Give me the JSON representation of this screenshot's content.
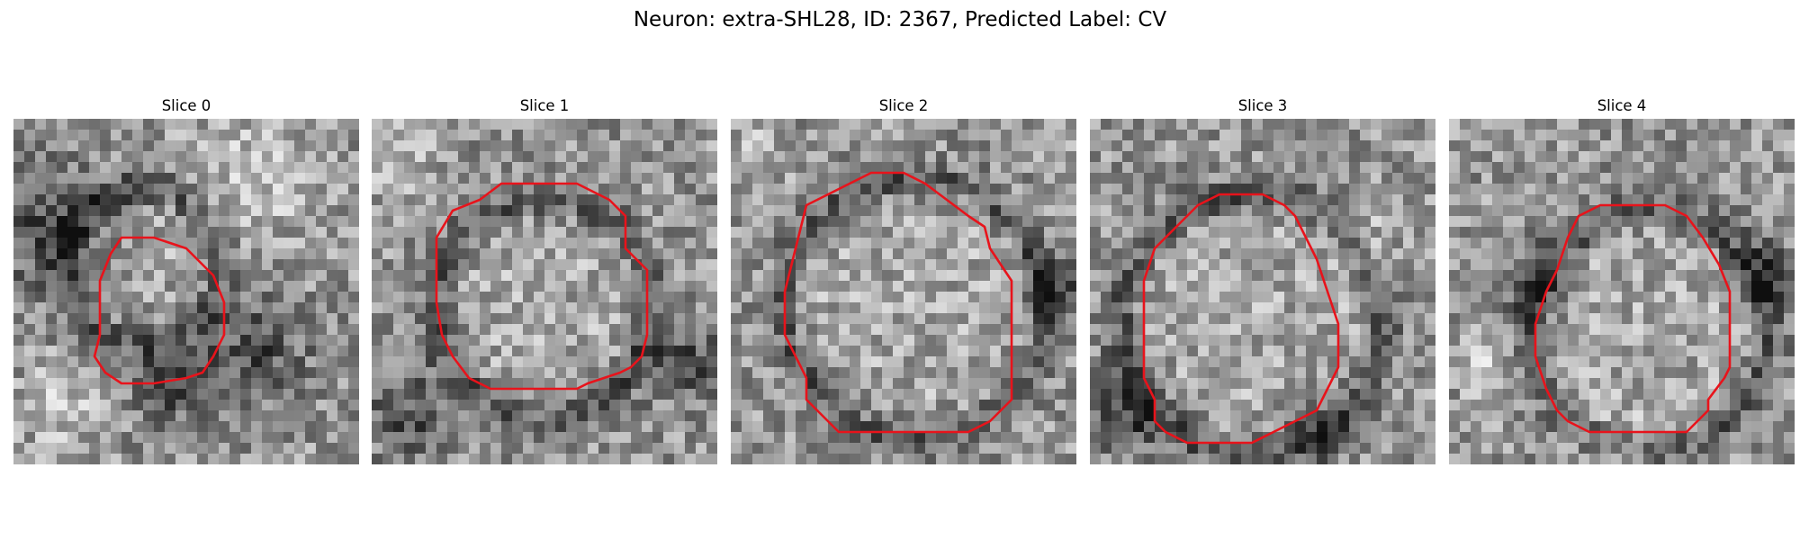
{
  "figure": {
    "title": "Neuron: extra-SHL28, ID: 2367, Predicted Label: CV"
  },
  "panels": [
    {
      "title": "Slice 0"
    },
    {
      "title": "Slice 1"
    },
    {
      "title": "Slice 2"
    },
    {
      "title": "Slice 3"
    },
    {
      "title": "Slice 4"
    }
  ],
  "colors": {
    "contour": "#e8131b",
    "background": "#ffffff"
  }
}
